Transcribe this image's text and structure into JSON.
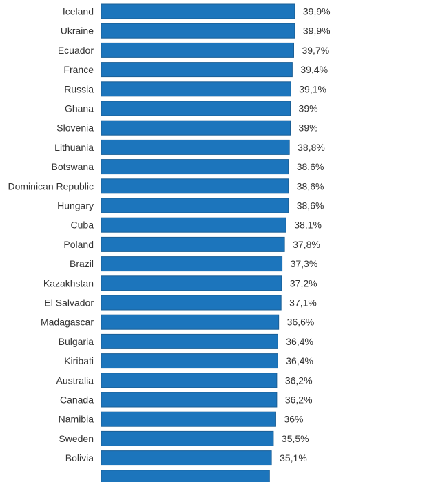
{
  "chart_data": {
    "type": "bar",
    "orientation": "horizontal",
    "title": "",
    "xlabel": "",
    "ylabel": "",
    "xlim": [
      0,
      40
    ],
    "grid": false,
    "bar_color": "#1c75bc",
    "categories": [
      "Iceland",
      "Ukraine",
      "Ecuador",
      "France",
      "Russia",
      "Ghana",
      "Slovenia",
      "Lithuania",
      "Botswana",
      "Dominican Republic",
      "Hungary",
      "Cuba",
      "Poland",
      "Brazil",
      "Kazakhstan",
      "El Salvador",
      "Madagascar",
      "Bulgaria",
      "Kiribati",
      "Australia",
      "Canada",
      "Namibia",
      "Sweden",
      "Bolivia",
      ""
    ],
    "values": [
      39.9,
      39.9,
      39.7,
      39.4,
      39.1,
      39,
      39,
      38.8,
      38.6,
      38.6,
      38.6,
      38.1,
      37.8,
      37.3,
      37.2,
      37.1,
      36.6,
      36.4,
      36.4,
      36.2,
      36.2,
      36,
      35.5,
      35.1,
      34.7
    ],
    "value_labels": [
      "39,9%",
      "39,9%",
      "39,7%",
      "39,4%",
      "39,1%",
      "39%",
      "39%",
      "38,8%",
      "38,6%",
      "38,6%",
      "38,6%",
      "38,1%",
      "37,8%",
      "37,3%",
      "37,2%",
      "37,1%",
      "36,6%",
      "36,4%",
      "36,4%",
      "36,2%",
      "36,2%",
      "36%",
      "35,5%",
      "35,1%",
      ""
    ]
  }
}
